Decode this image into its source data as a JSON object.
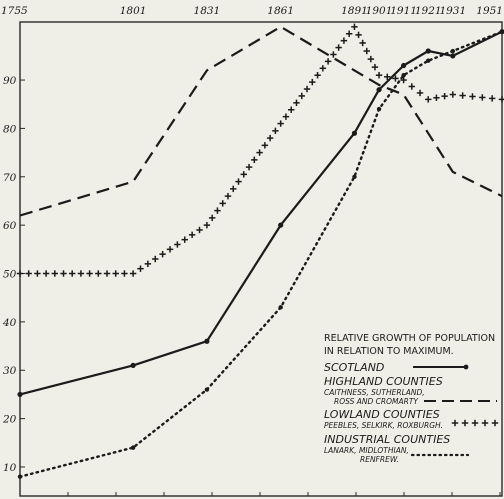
{
  "chart_data": {
    "type": "line",
    "x_ticks": [
      1755,
      1801,
      1831,
      1861,
      1891,
      1901,
      1911,
      1921,
      1931,
      1951
    ],
    "y_ticks": [
      10,
      20,
      30,
      40,
      50,
      60,
      70,
      80,
      90
    ],
    "x_tick_labels": [
      "1755",
      "1801",
      "1831",
      "1861",
      "1891",
      "1901",
      "1911",
      "1921",
      "1931",
      "1951"
    ],
    "y_tick_labels": [
      "10",
      "20",
      "30",
      "40",
      "50",
      "60",
      "70",
      "80",
      "90"
    ],
    "xlim": [
      1755,
      1951
    ],
    "ylim": [
      4,
      102
    ],
    "grid": false,
    "legend_title": [
      "RELATIVE GROWTH OF POPULATION",
      "IN RELATION TO MAXIMUM."
    ],
    "series": [
      {
        "name": "SCOTLAND",
        "subtitle": [],
        "style": "solid",
        "color": "#1b1b1b",
        "points": [
          [
            1755,
            25
          ],
          [
            1801,
            31
          ],
          [
            1831,
            36
          ],
          [
            1861,
            60
          ],
          [
            1891,
            79
          ],
          [
            1901,
            88
          ],
          [
            1911,
            93
          ],
          [
            1921,
            96
          ],
          [
            1931,
            95
          ],
          [
            1951,
            100
          ]
        ]
      },
      {
        "name": "HIGHLAND COUNTIES",
        "subtitle": [
          "CAITHNESS, SUTHERLAND,",
          "ROSS AND CROMARTY"
        ],
        "style": "dashed",
        "color": "#1b1b1b",
        "points": [
          [
            1755,
            62
          ],
          [
            1801,
            69
          ],
          [
            1831,
            92
          ],
          [
            1861,
            101
          ],
          [
            1891,
            92
          ],
          [
            1901,
            89
          ],
          [
            1911,
            87
          ],
          [
            1921,
            79
          ],
          [
            1931,
            71
          ],
          [
            1951,
            66
          ]
        ]
      },
      {
        "name": "LOWLAND COUNTIES",
        "subtitle": [
          "PEEBLES, SELKIRK, ROXBURGH."
        ],
        "style": "crosses",
        "color": "#1b1b1b",
        "points": [
          [
            1755,
            50
          ],
          [
            1801,
            50
          ],
          [
            1831,
            60
          ],
          [
            1861,
            81
          ],
          [
            1891,
            101
          ],
          [
            1901,
            91
          ],
          [
            1911,
            90
          ],
          [
            1921,
            86
          ],
          [
            1931,
            87
          ],
          [
            1951,
            86
          ]
        ]
      },
      {
        "name": "INDUSTRIAL COUNTIES",
        "subtitle": [
          "LANARK, MIDLOTHIAN,",
          "RENFREW."
        ],
        "style": "dotted",
        "color": "#1b1b1b",
        "points": [
          [
            1755,
            8
          ],
          [
            1801,
            14
          ],
          [
            1831,
            26
          ],
          [
            1861,
            43
          ],
          [
            1891,
            70
          ],
          [
            1901,
            84
          ],
          [
            1911,
            91
          ],
          [
            1921,
            94
          ],
          [
            1931,
            96
          ],
          [
            1951,
            100
          ]
        ]
      }
    ]
  }
}
